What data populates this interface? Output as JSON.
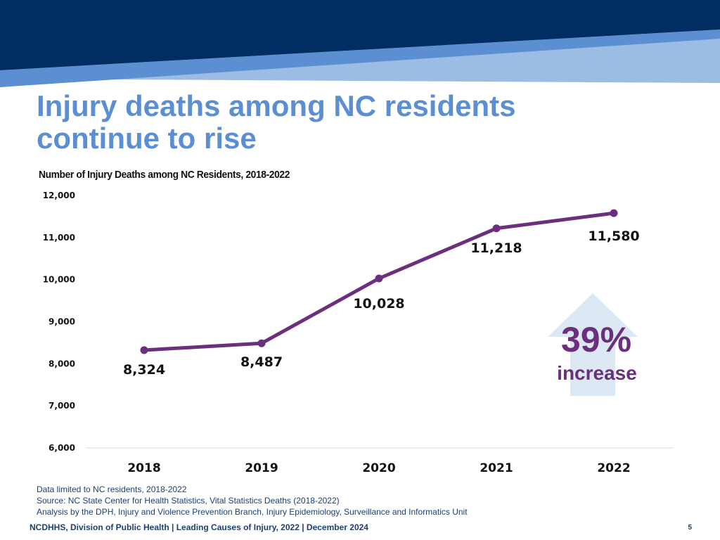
{
  "slide": {
    "title_line1": "Injury deaths among NC residents",
    "title_line2": "continue to rise"
  },
  "colors": {
    "banner_dark": "#002d62",
    "banner_mid": "#5b8fd1",
    "banner_light": "#9bbde3",
    "title": "#5b8fd1",
    "line": "#6b2f7e",
    "arrow": "#dce8f3"
  },
  "chart_data": {
    "type": "line",
    "title": "Number of Injury Deaths among NC Residents, 2018-2022",
    "categories": [
      "2018",
      "2019",
      "2020",
      "2021",
      "2022"
    ],
    "values": [
      8324,
      8487,
      10028,
      11218,
      11580
    ],
    "data_labels": [
      "8,324",
      "8,487",
      "10,028",
      "11,218",
      "11,580"
    ],
    "yticks": [
      6000,
      7000,
      8000,
      9000,
      10000,
      11000,
      12000
    ],
    "ytick_labels": [
      "6,000",
      "7,000",
      "8,000",
      "9,000",
      "10,000",
      "11,000",
      "12,000"
    ],
    "ylim": [
      6000,
      12000
    ],
    "xlabel": "",
    "ylabel": "",
    "grid": false,
    "annotation": {
      "percent": "39%",
      "text": "increase"
    }
  },
  "notes": {
    "line1": "Data limited to NC residents, 2018-2022",
    "line2": "Source: NC State Center for Health Statistics, Vital Statistics Deaths (2018-2022)",
    "line3": "Analysis by the DPH, Injury and Violence Prevention Branch, Injury Epidemiology, Surveillance and Informatics Unit"
  },
  "footer": {
    "text": "NCDHHS, Division of Public Health | Leading Causes of Injury, 2022 | December 2024",
    "page_number": "5"
  }
}
